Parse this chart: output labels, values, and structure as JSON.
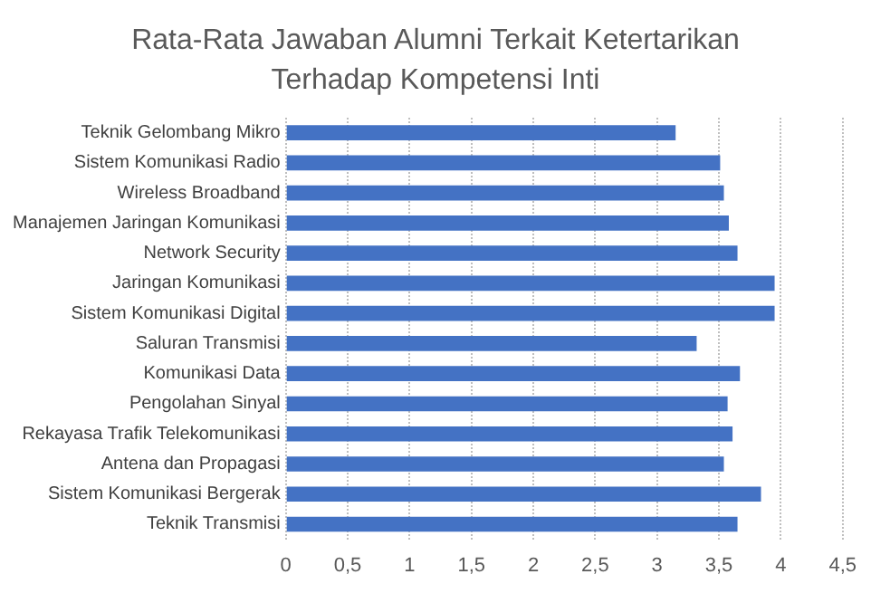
{
  "chart_data": {
    "type": "bar",
    "orientation": "horizontal",
    "title": "Rata-Rata Jawaban Alumni Terkait Ketertarikan Terhadap Kompetensi Inti",
    "categories": [
      "Teknik Gelombang Mikro",
      "Sistem Komunikasi Radio",
      "Wireless Broadband",
      "Manajemen Jaringan Komunikasi",
      "Network Security",
      "Jaringan Komunikasi",
      "Sistem Komunikasi Digital",
      "Saluran Transmisi",
      "Komunikasi Data",
      "Pengolahan Sinyal",
      "Rekayasa Trafik Telekomunikasi",
      "Antena dan Propagasi",
      "Sistem Komunikasi Bergerak",
      "Teknik Transmisi"
    ],
    "values": [
      3.15,
      3.51,
      3.54,
      3.58,
      3.65,
      3.95,
      3.95,
      3.32,
      3.67,
      3.57,
      3.61,
      3.54,
      3.84,
      3.65
    ],
    "color": "#4472c4",
    "xlim": [
      0,
      4.5
    ],
    "xticks": [
      {
        "value": 0,
        "label": "0"
      },
      {
        "value": 0.5,
        "label": "0,5"
      },
      {
        "value": 1,
        "label": "1"
      },
      {
        "value": 1.5,
        "label": "1,5"
      },
      {
        "value": 2,
        "label": "2"
      },
      {
        "value": 2.5,
        "label": "2,5"
      },
      {
        "value": 3,
        "label": "3"
      },
      {
        "value": 3.5,
        "label": "3,5"
      },
      {
        "value": 4,
        "label": "4"
      },
      {
        "value": 4.5,
        "label": "4,5"
      }
    ],
    "grid": "x",
    "legend": false
  }
}
